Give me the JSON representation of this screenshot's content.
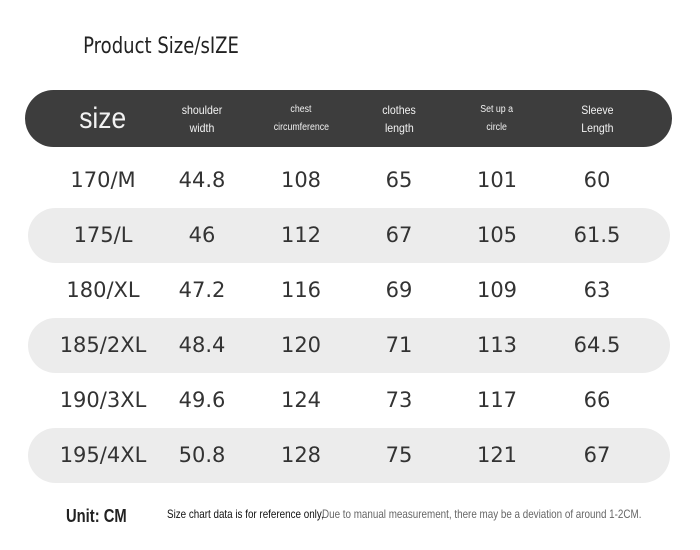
{
  "title": "Product Size/sIZE",
  "table": {
    "header": [
      {
        "lines": [
          "size"
        ]
      },
      {
        "lines": [
          "shoulder",
          "width"
        ]
      },
      {
        "lines": [
          "chest",
          "circumference"
        ]
      },
      {
        "lines": [
          "clothes",
          "length"
        ]
      },
      {
        "lines": [
          "Set up a",
          "circle"
        ]
      },
      {
        "lines": [
          "Sleeve",
          "Length"
        ]
      }
    ],
    "rows": [
      [
        "170/M",
        "44.8",
        "108",
        "65",
        "101",
        "60"
      ],
      [
        "175/L",
        "46",
        "112",
        "67",
        "105",
        "61.5"
      ],
      [
        "180/XL",
        "47.2",
        "116",
        "69",
        "109",
        "63"
      ],
      [
        "185/2XL",
        "48.4",
        "120",
        "71",
        "113",
        "64.5"
      ],
      [
        "190/3XL",
        "49.6",
        "124",
        "73",
        "117",
        "66"
      ],
      [
        "195/4XL",
        "50.8",
        "128",
        "75",
        "121",
        "67"
      ]
    ]
  },
  "footer": {
    "unit": "Unit: CM",
    "note_1": "Size chart data is for reference only,",
    "note_2": "Due to manual measurement, there may be a deviation of around 1-2CM."
  }
}
